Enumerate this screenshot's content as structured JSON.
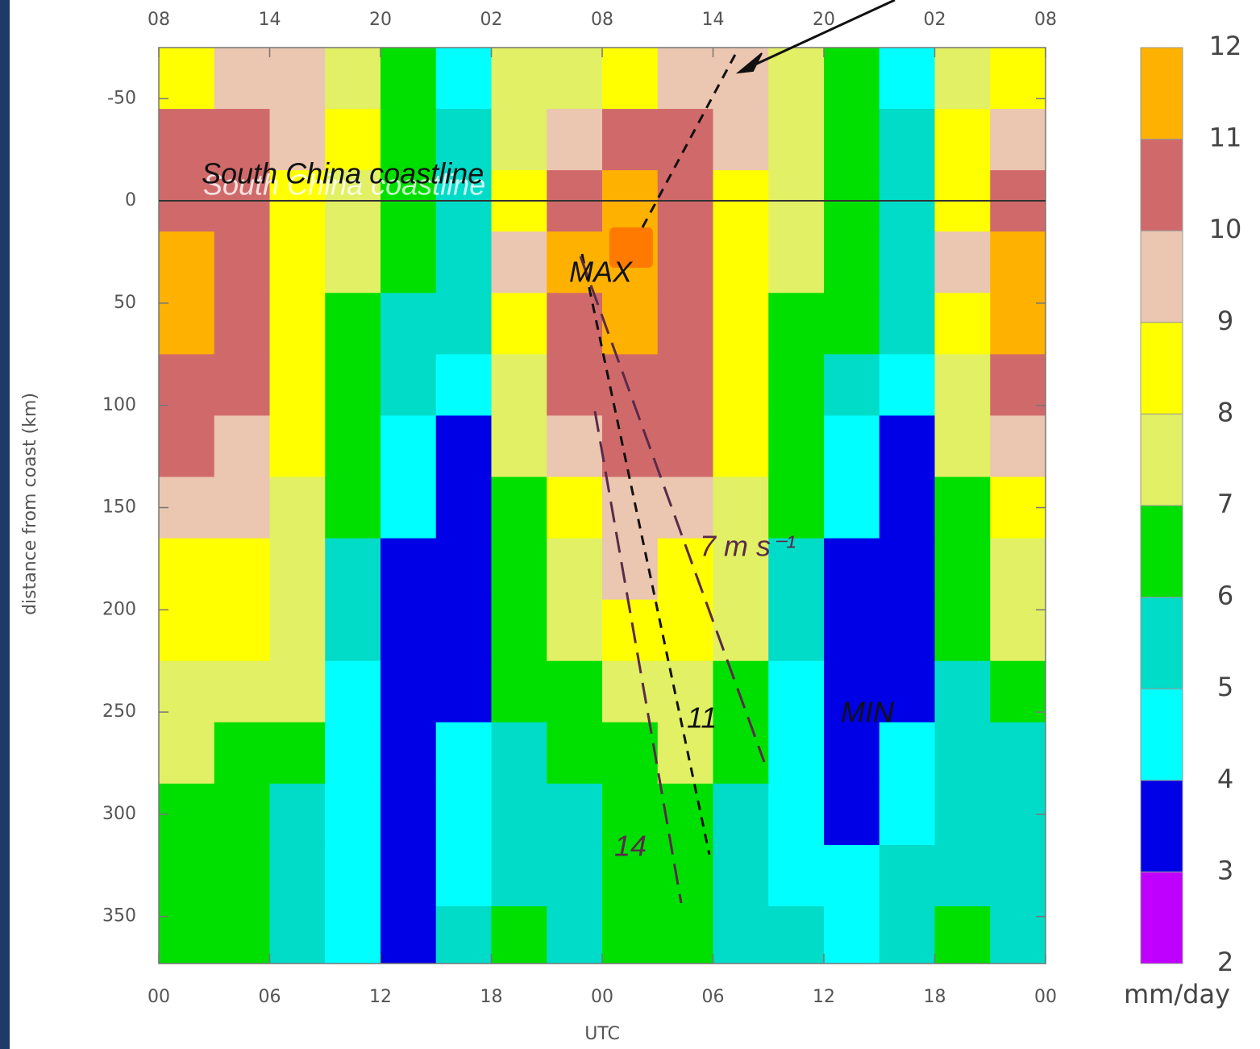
{
  "chart_data": {
    "type": "contour",
    "xlabel": "UTC",
    "ylabel": "distance from coast (km)",
    "colorbar_label": "mm/day",
    "annotations": [
      "South China coastline",
      "MAX",
      "MIN",
      "7 m s⁻¹",
      "11",
      "14"
    ],
    "xlim": [
      0,
      48
    ],
    "xticks": [
      {
        "value": 0,
        "label": "00"
      },
      {
        "value": 6,
        "label": "06"
      },
      {
        "value": 12,
        "label": "12"
      },
      {
        "value": 18,
        "label": "18"
      },
      {
        "value": 24,
        "label": "00"
      },
      {
        "value": 30,
        "label": "06"
      },
      {
        "value": 36,
        "label": "12"
      },
      {
        "value": 42,
        "label": "18"
      },
      {
        "value": 48,
        "label": "00"
      }
    ],
    "x2ticks": [
      {
        "value": 0,
        "label": "08"
      },
      {
        "value": 6,
        "label": "14"
      },
      {
        "value": 12,
        "label": "20"
      },
      {
        "value": 18,
        "label": "02"
      },
      {
        "value": 24,
        "label": "08"
      },
      {
        "value": 30,
        "label": "14"
      },
      {
        "value": 36,
        "label": "20"
      },
      {
        "value": 42,
        "label": "02"
      },
      {
        "value": 48,
        "label": "08"
      }
    ],
    "ylim": [
      -75,
      373
    ],
    "y_inverted": true,
    "yticks": [
      -50,
      0,
      50,
      100,
      150,
      200,
      250,
      300,
      350
    ],
    "levels": [
      2,
      3,
      4,
      5,
      6,
      7,
      8,
      9,
      10,
      11,
      12
    ],
    "colors": [
      "#c000ff",
      "#0000e6",
      "#00ffff",
      "#00dcc8",
      "#00e000",
      "#e1f064",
      "#ffff00",
      "#ebc6b0",
      "#d06a6a",
      "#ffb100"
    ],
    "x": [
      1.5,
      4.5,
      7.5,
      10.5,
      13.5,
      16.5,
      19.5,
      22.5,
      25.5,
      28.5,
      31.5,
      34.5,
      37.5,
      40.5,
      43.5,
      46.5
    ],
    "y": [
      -60,
      -30,
      0,
      30,
      60,
      90,
      120,
      150,
      180,
      210,
      240,
      270,
      300,
      330,
      360
    ],
    "z": [
      [
        8.5,
        9.5,
        9.5,
        7.5,
        6.5,
        4.5,
        7.5,
        7.5,
        8.5,
        9.5,
        9.5,
        7.5,
        6.5,
        4.5,
        7.5,
        8.5
      ],
      [
        10.5,
        10.5,
        9.5,
        8.5,
        6.5,
        5.5,
        7.5,
        9.5,
        10.5,
        10.5,
        9.5,
        7.5,
        6.5,
        5.5,
        8.5,
        9.5
      ],
      [
        10.5,
        10.5,
        8.5,
        7.5,
        6.5,
        5.5,
        8.5,
        10.5,
        11.5,
        10.5,
        8.5,
        7.5,
        6.5,
        5.5,
        8.5,
        10.5
      ],
      [
        11.5,
        10.5,
        8.5,
        7.5,
        6.5,
        5.5,
        9.5,
        11.5,
        11.5,
        10.5,
        8.5,
        7.5,
        6.5,
        5.5,
        9.5,
        11.5
      ],
      [
        11.5,
        10.5,
        8.5,
        6.5,
        5.5,
        5.5,
        8.5,
        10.5,
        11.5,
        10.5,
        8.5,
        6.5,
        6.5,
        5.5,
        8.5,
        11.5
      ],
      [
        10.5,
        10.5,
        8.5,
        6.5,
        5.5,
        4.5,
        7.5,
        10.5,
        10.5,
        10.5,
        8.5,
        6.5,
        5.5,
        4.5,
        7.5,
        10.5
      ],
      [
        10.5,
        9.5,
        8.5,
        6.5,
        4.5,
        3.5,
        7.5,
        9.5,
        10.5,
        10.5,
        8.5,
        6.5,
        4.5,
        3.5,
        7.5,
        9.5
      ],
      [
        9.5,
        9.5,
        7.5,
        6.5,
        4.5,
        3.5,
        6.5,
        8.5,
        9.5,
        9.5,
        7.5,
        6.5,
        4.5,
        3.5,
        6.5,
        8.5
      ],
      [
        8.5,
        8.5,
        7.5,
        5.5,
        3.5,
        3.5,
        6.5,
        7.5,
        9.5,
        8.5,
        7.5,
        5.5,
        3.5,
        3.5,
        6.5,
        7.5
      ],
      [
        8.5,
        8.5,
        7.5,
        5.5,
        3.5,
        3.5,
        6.5,
        7.5,
        8.5,
        8.5,
        7.5,
        5.5,
        3.5,
        3.5,
        6.5,
        7.5
      ],
      [
        7.5,
        7.5,
        7.5,
        4.5,
        3.5,
        3.5,
        6.5,
        6.5,
        7.5,
        7.5,
        6.5,
        4.5,
        3.5,
        3.5,
        5.5,
        6.5
      ],
      [
        7.5,
        6.5,
        6.5,
        4.5,
        3.5,
        4.5,
        5.5,
        6.5,
        6.5,
        7.5,
        6.5,
        4.5,
        3.5,
        4.5,
        5.5,
        5.5
      ],
      [
        6.5,
        6.5,
        5.5,
        4.5,
        3.5,
        4.5,
        5.5,
        5.5,
        6.5,
        6.5,
        5.5,
        4.5,
        3.5,
        4.5,
        5.5,
        5.5
      ],
      [
        6.5,
        6.5,
        5.5,
        4.5,
        3.5,
        4.5,
        5.5,
        5.5,
        6.5,
        6.5,
        5.5,
        4.5,
        4.5,
        5.5,
        5.5,
        5.5
      ],
      [
        6.5,
        6.5,
        5.5,
        4.5,
        3.5,
        5.5,
        6.5,
        5.5,
        6.5,
        6.5,
        5.5,
        5.5,
        4.5,
        5.5,
        6.5,
        5.5
      ]
    ]
  }
}
